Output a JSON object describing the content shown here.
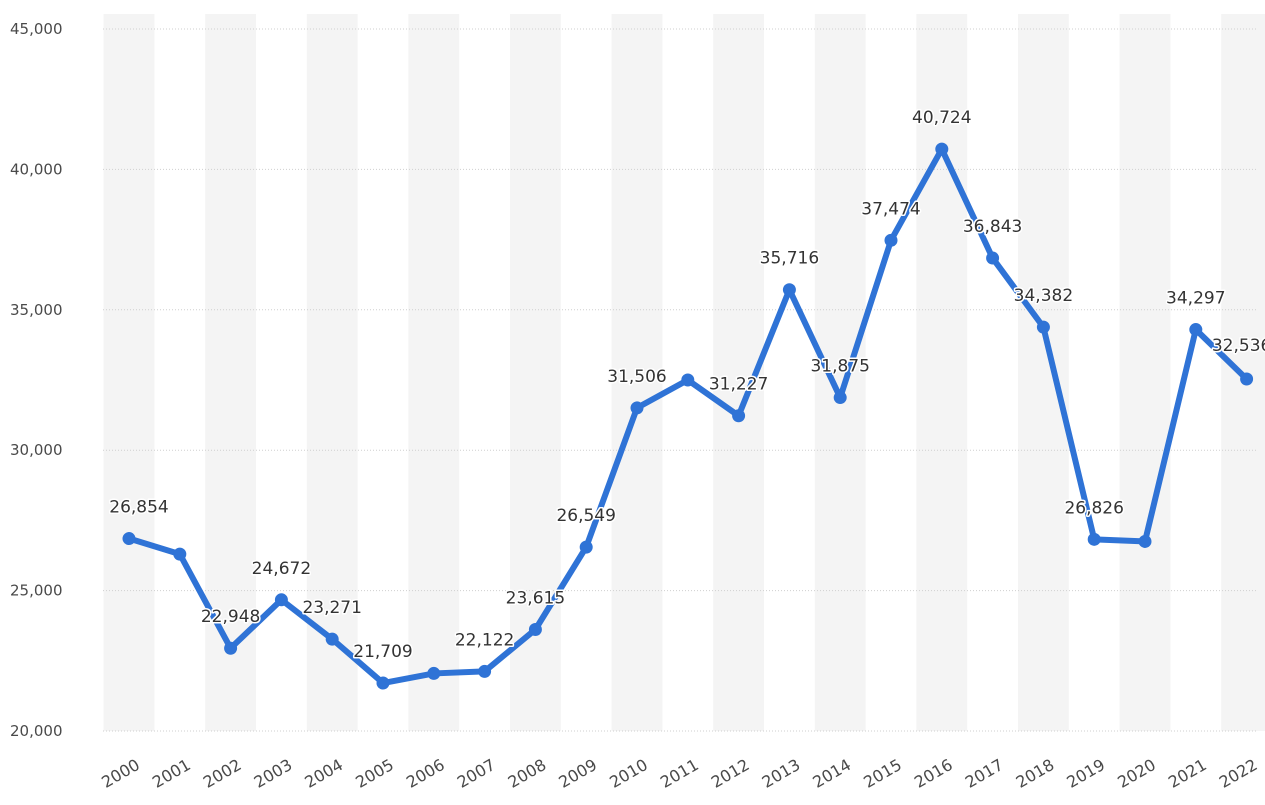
{
  "chart_data": {
    "type": "line",
    "x": [
      "2000",
      "2001",
      "2002",
      "2003",
      "2004",
      "2005",
      "2006",
      "2007",
      "2008",
      "2009",
      "2010",
      "2011",
      "2012",
      "2013",
      "2014",
      "2015",
      "2016",
      "2017",
      "2018",
      "2019",
      "2020",
      "2021",
      "2022"
    ],
    "series": [
      {
        "values": [
          26854,
          26300,
          22948,
          24672,
          23271,
          21709,
          22050,
          22122,
          23615,
          26549,
          31506,
          32500,
          31227,
          35716,
          31875,
          37474,
          40724,
          36843,
          34382,
          26826,
          26750,
          34297,
          32536
        ],
        "labels": [
          "26,854",
          null,
          "22,948",
          "24,672",
          "23,271",
          "21,709",
          null,
          "22,122",
          "23,615",
          "26,549",
          "31,506",
          null,
          "31,227",
          "35,716",
          "31,875",
          "37,474",
          "40,724",
          "36,843",
          "34,382",
          "26,826",
          null,
          "34,297",
          "32,536"
        ],
        "color": "#2f73d6"
      }
    ],
    "y_ticks": [
      "20,000",
      "25,000",
      "30,000",
      "35,000",
      "40,000",
      "45,000"
    ],
    "ylim": [
      20000,
      45000
    ],
    "grid": true,
    "title": "",
    "xlabel": "",
    "ylabel": ""
  }
}
